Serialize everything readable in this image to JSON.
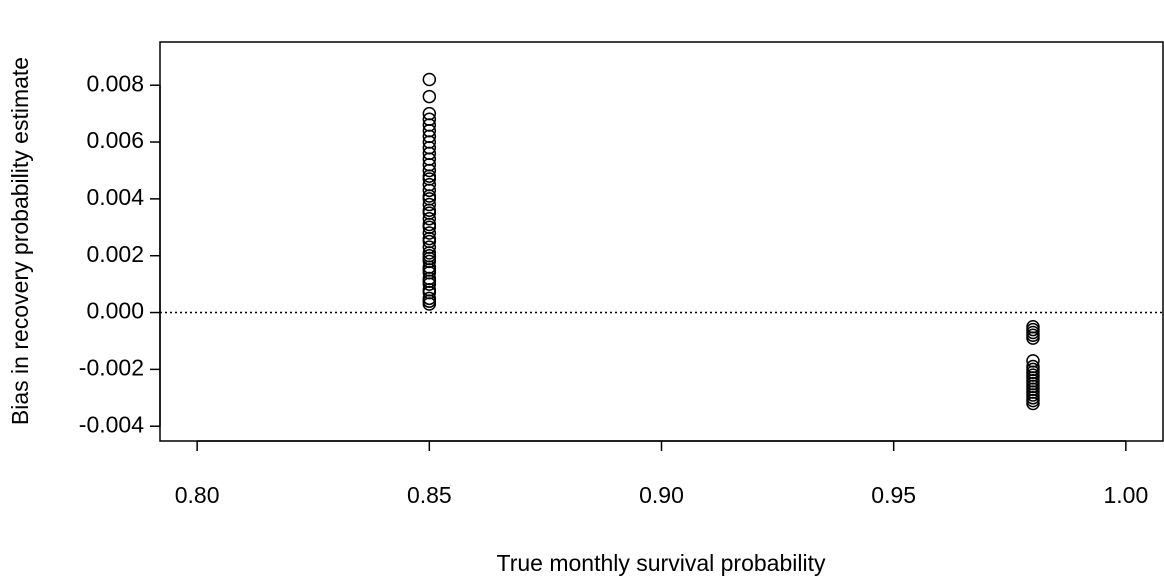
{
  "chart_data": {
    "type": "scatter",
    "xlabel": "True monthly survival probability",
    "ylabel": "Bias in recovery probability estimate",
    "xlim": [
      0.792,
      1.008
    ],
    "ylim": [
      -0.00452,
      0.00952
    ],
    "xticks": [
      {
        "value": 0.8,
        "label": "0.80"
      },
      0.85,
      {
        "value": 0.9,
        "label": "0.90"
      },
      0.95,
      {
        "value": 1,
        "label": "1.00"
      }
    ],
    "yticks": [
      -0.004,
      -0.002,
      {
        "value": 0,
        "label": "0.000"
      },
      0.002,
      0.004,
      0.006,
      0.008
    ],
    "hline": 0,
    "color": "#000000",
    "series": [
      {
        "x": [
          0.85,
          0.85,
          0.85,
          0.85,
          0.85,
          0.85,
          0.85,
          0.85,
          0.85,
          0.85,
          0.85,
          0.85,
          0.85,
          0.85,
          0.85,
          0.85,
          0.85,
          0.85,
          0.85,
          0.85,
          0.85,
          0.85,
          0.85,
          0.85,
          0.85,
          0.85,
          0.85,
          0.85,
          0.85,
          0.85,
          0.85,
          0.85,
          0.85,
          0.85,
          0.85,
          0.85,
          0.85,
          0.85,
          0.85,
          0.85,
          0.85,
          0.85,
          0.85,
          0.85
        ],
        "values": [
          0.0003,
          0.0004,
          0.0005,
          0.0007,
          0.0008,
          0.001,
          0.0011,
          0.0012,
          0.0014,
          0.0015,
          0.0016,
          0.0018,
          0.0019,
          0.002,
          0.0021,
          0.0023,
          0.0025,
          0.0026,
          0.0028,
          0.003,
          0.0031,
          0.0033,
          0.0035,
          0.0036,
          0.0038,
          0.004,
          0.0041,
          0.0043,
          0.0045,
          0.0047,
          0.0048,
          0.005,
          0.0052,
          0.0054,
          0.0056,
          0.0058,
          0.006,
          0.0062,
          0.0064,
          0.0066,
          0.0068,
          0.007,
          0.0076,
          0.0082
        ]
      },
      {
        "x": [
          0.98,
          0.98,
          0.98,
          0.98,
          0.98,
          0.98,
          0.98,
          0.98,
          0.98,
          0.98,
          0.98,
          0.98,
          0.98,
          0.98,
          0.98,
          0.98,
          0.98,
          0.98,
          0.98,
          0.98
        ],
        "values": [
          -0.0005,
          -0.0006,
          -0.0007,
          -0.0008,
          -0.0009,
          -0.0017,
          -0.0019,
          -0.002,
          -0.0021,
          -0.0022,
          -0.0023,
          -0.0024,
          -0.0025,
          -0.0026,
          -0.0027,
          -0.0028,
          -0.0029,
          -0.003,
          -0.0031,
          -0.0032
        ]
      }
    ]
  }
}
